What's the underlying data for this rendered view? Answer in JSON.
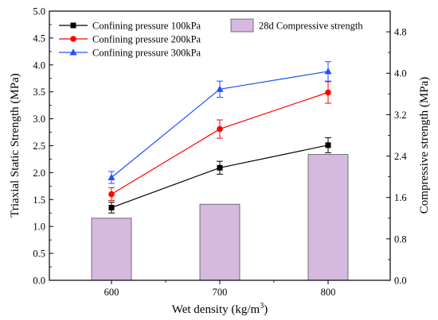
{
  "chart_data": {
    "type": "bar+line",
    "title": "",
    "categories": [
      "600",
      "700",
      "800"
    ],
    "xlabel": "Wet density (kg/m³)",
    "xlabel_parts": {
      "main": "Wet density (kg/m",
      "sup": "3",
      "tail": ")"
    },
    "ylabel_left": "Triaxial Static Strength (MPa)",
    "ylabel_right": "Compressive strength (MPa)",
    "ylim_left": [
      0,
      5.0
    ],
    "yticks_left": [
      "0.0",
      "0.5",
      "1.0",
      "1.5",
      "2.0",
      "2.5",
      "3.0",
      "3.5",
      "4.0",
      "4.5",
      "5.0"
    ],
    "ylim_right": [
      0,
      5.2
    ],
    "yticks_right": [
      "0.0",
      "0.8",
      "1.6",
      "2.4",
      "3.2",
      "4.0",
      "4.8"
    ],
    "bars": {
      "name": "28d Compressive strength",
      "axis": "right",
      "color": "#d5b9df",
      "values": [
        1.2,
        1.47,
        2.43
      ]
    },
    "series": [
      {
        "name": "Confining pressure 100kPa",
        "axis": "left",
        "color": "#000000",
        "marker": "square",
        "values": [
          1.35,
          2.09,
          2.51
        ],
        "errors": [
          0.1,
          0.12,
          0.14
        ]
      },
      {
        "name": "Confining pressure 200kPa",
        "axis": "left",
        "color": "#ff0000",
        "marker": "circle",
        "values": [
          1.6,
          2.81,
          3.49
        ],
        "errors": [
          0.12,
          0.17,
          0.2
        ]
      },
      {
        "name": "Confining pressure 300kPa",
        "axis": "left",
        "color": "#1e50ff",
        "marker": "triangle",
        "values": [
          1.91,
          3.55,
          3.88
        ],
        "errors": [
          0.11,
          0.15,
          0.18
        ]
      }
    ],
    "legend": "top-left (lines), top-right (bars)",
    "grid": false
  }
}
